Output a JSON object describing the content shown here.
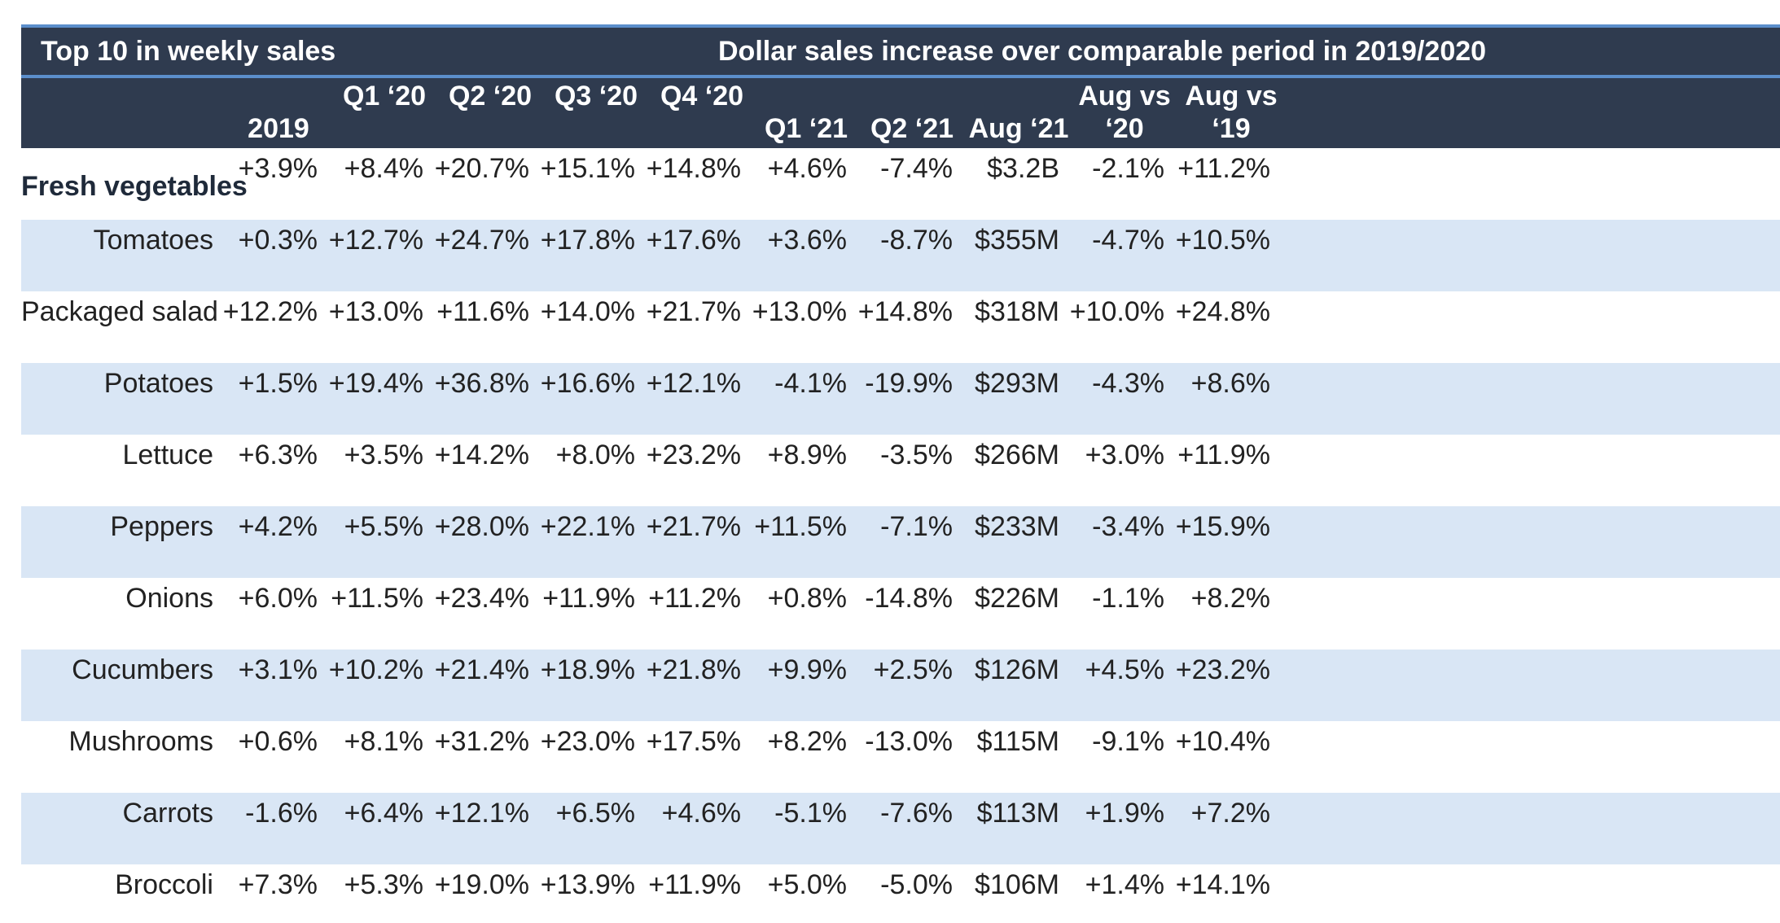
{
  "table": {
    "title_left": "Top 10 in weekly sales",
    "title_right": "Dollar sales increase over comparable period in 2019/2020",
    "columns": [
      {
        "line1": "",
        "line2": "2019"
      },
      {
        "line1": "Q1 ‘20",
        "line2": ""
      },
      {
        "line1": "Q2 ‘20",
        "line2": ""
      },
      {
        "line1": "Q3 ‘20",
        "line2": ""
      },
      {
        "line1": "Q4 ‘20",
        "line2": ""
      },
      {
        "line1": "",
        "line2": "Q1 ‘21"
      },
      {
        "line1": "",
        "line2": "Q2 ‘21"
      },
      {
        "line1": "",
        "line2": "Aug ‘21"
      },
      {
        "line1": "Aug vs",
        "line2": "‘20"
      },
      {
        "line1": "Aug vs",
        "line2": "‘19"
      }
    ],
    "rows": [
      {
        "label": "Fresh vegetables",
        "bold": true,
        "values": [
          "+3.9%",
          "+8.4%",
          "+20.7%",
          "+15.1%",
          "+14.8%",
          "+4.6%",
          "-7.4%",
          "$3.2B",
          "-2.1%",
          "+11.2%"
        ]
      },
      {
        "label": "Tomatoes",
        "bold": false,
        "values": [
          "+0.3%",
          "+12.7%",
          "+24.7%",
          "+17.8%",
          "+17.6%",
          "+3.6%",
          "-8.7%",
          "$355M",
          "-4.7%",
          "+10.5%"
        ]
      },
      {
        "label": "Packaged salad",
        "bold": false,
        "values": [
          "+12.2%",
          "+13.0%",
          "+11.6%",
          "+14.0%",
          "+21.7%",
          "+13.0%",
          "+14.8%",
          "$318M",
          "+10.0%",
          "+24.8%"
        ]
      },
      {
        "label": "Potatoes",
        "bold": false,
        "values": [
          "+1.5%",
          "+19.4%",
          "+36.8%",
          "+16.6%",
          "+12.1%",
          "-4.1%",
          "-19.9%",
          "$293M",
          "-4.3%",
          "+8.6%"
        ]
      },
      {
        "label": "Lettuce",
        "bold": false,
        "values": [
          "+6.3%",
          "+3.5%",
          "+14.2%",
          "+8.0%",
          "+23.2%",
          "+8.9%",
          "-3.5%",
          "$266M",
          "+3.0%",
          "+11.9%"
        ]
      },
      {
        "label": "Peppers",
        "bold": false,
        "values": [
          "+4.2%",
          "+5.5%",
          "+28.0%",
          "+22.1%",
          "+21.7%",
          "+11.5%",
          "-7.1%",
          "$233M",
          "-3.4%",
          "+15.9%"
        ]
      },
      {
        "label": "Onions",
        "bold": false,
        "values": [
          "+6.0%",
          "+11.5%",
          "+23.4%",
          "+11.9%",
          "+11.2%",
          "+0.8%",
          "-14.8%",
          "$226M",
          "-1.1%",
          "+8.2%"
        ]
      },
      {
        "label": "Cucumbers",
        "bold": false,
        "values": [
          "+3.1%",
          "+10.2%",
          "+21.4%",
          "+18.9%",
          "+21.8%",
          "+9.9%",
          "+2.5%",
          "$126M",
          "+4.5%",
          "+23.2%"
        ]
      },
      {
        "label": "Mushrooms",
        "bold": false,
        "values": [
          "+0.6%",
          "+8.1%",
          "+31.2%",
          "+23.0%",
          "+17.5%",
          "+8.2%",
          "-13.0%",
          "$115M",
          "-9.1%",
          "+10.4%"
        ]
      },
      {
        "label": "Carrots",
        "bold": false,
        "values": [
          "-1.6%",
          "+6.4%",
          "+12.1%",
          "+6.5%",
          "+4.6%",
          "-5.1%",
          "-7.6%",
          "$113M",
          "+1.9%",
          "+7.2%"
        ]
      },
      {
        "label": "Broccoli",
        "bold": false,
        "values": [
          "+7.3%",
          "+5.3%",
          "+19.0%",
          "+13.9%",
          "+11.9%",
          "+5.0%",
          "-5.0%",
          "$106M",
          "+1.4%",
          "+14.1%"
        ]
      }
    ]
  },
  "colors": {
    "header_bg": "#2f3b4f",
    "accent_line": "#5b8ecb",
    "row_shade": "#d9e6f5"
  }
}
